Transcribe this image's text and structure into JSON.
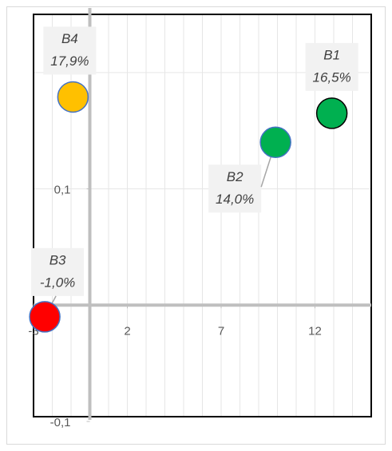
{
  "chart_data": {
    "type": "scatter",
    "xlim": [
      -3,
      15
    ],
    "ylim": [
      -0.1,
      0.25
    ],
    "xticks": [
      -3,
      2,
      7,
      12
    ],
    "yticks": [
      {
        "value": -0.1,
        "label": "-0,1"
      },
      {
        "value": 0.1,
        "label": "0,1"
      }
    ],
    "xgrid": [
      -2,
      -1,
      1,
      2,
      3,
      4,
      5,
      6,
      7,
      8,
      9,
      10,
      11,
      12,
      13,
      14
    ],
    "ygrid": [
      0.1,
      0.2
    ],
    "series": [
      {
        "name": "B1",
        "color": "#00b050",
        "x": [
          12.9
        ],
        "values": [
          0.165
        ],
        "value_labels": [
          "16,5%"
        ]
      },
      {
        "name": "B2",
        "color": "#00b050",
        "x": [
          9.9
        ],
        "values": [
          0.14
        ],
        "value_labels": [
          "14,0%"
        ]
      },
      {
        "name": "B3",
        "color": "#ff0000",
        "x": [
          -2.4
        ],
        "values": [
          -0.01
        ],
        "value_labels": [
          "-1,0%"
        ]
      },
      {
        "name": "B4",
        "color": "#ffc000",
        "x": [
          -0.9
        ],
        "values": [
          0.179
        ],
        "value_labels": [
          "17,9%"
        ]
      }
    ]
  }
}
